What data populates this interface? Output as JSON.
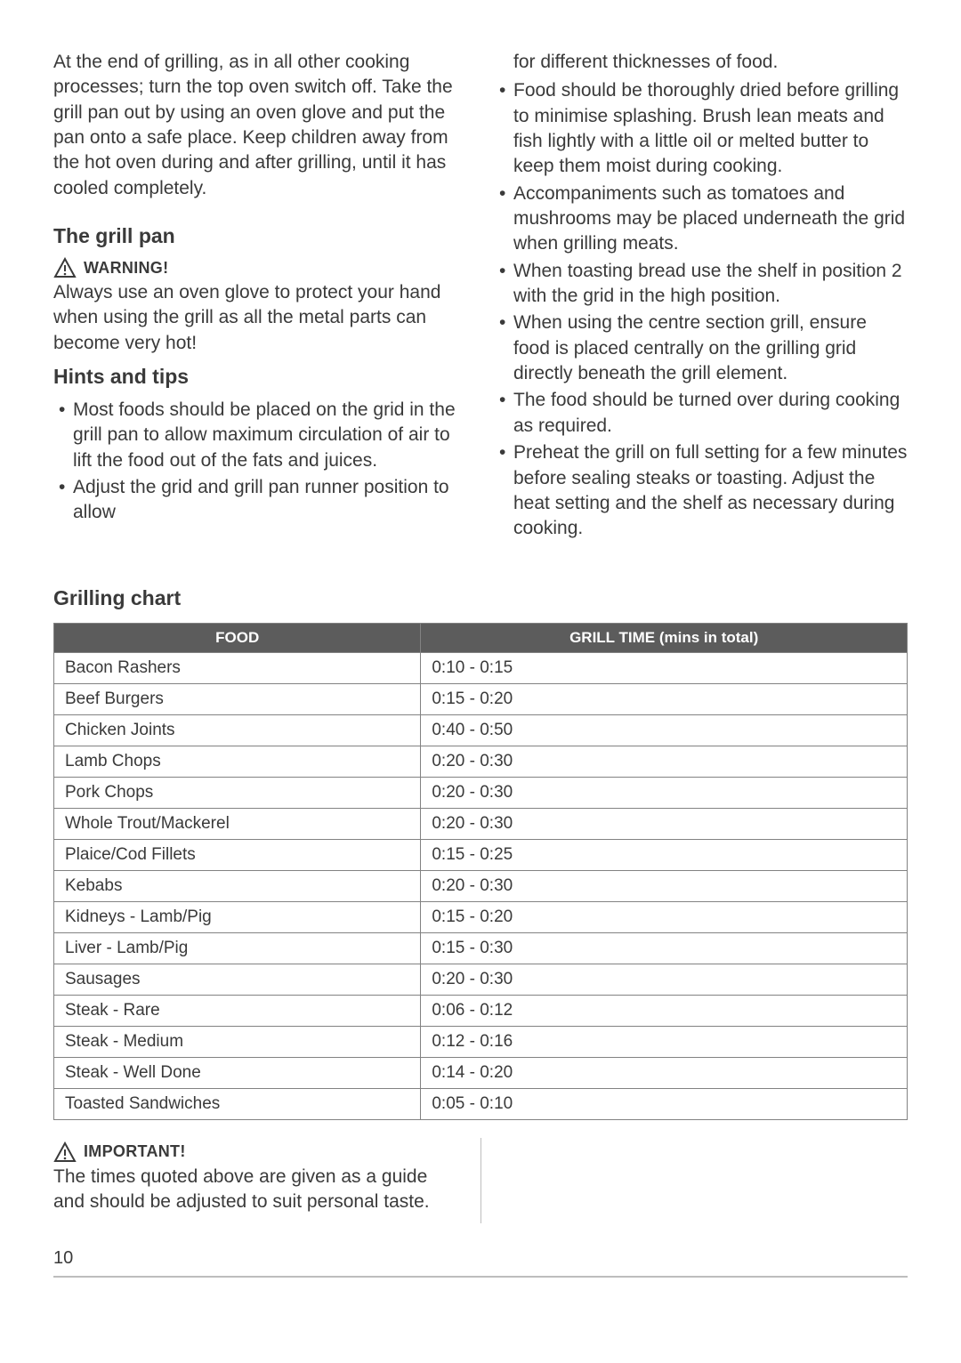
{
  "intro": "At the end of grilling, as in all other cooking processes; turn the top oven switch off. Take the grill pan out by using an oven glove and put the pan onto a safe place. Keep children away from the hot oven during and after grilling, until it has cooled completely.",
  "section_grill_pan": "The grill pan",
  "warning_label": "WARNING!",
  "warning_text": "Always use an oven glove to protect your hand when using the grill as all the metal parts can become very hot!",
  "section_hints": "Hints and tips",
  "hints_left": [
    "Most foods should be placed on the grid in the grill pan to allow maximum circulation of air to lift the food out of the fats and juices.",
    "Adjust the grid and grill pan runner position to allow"
  ],
  "right_continuation": "for different thicknesses of food.",
  "hints_right": [
    "Food should be thoroughly dried before grilling to minimise splashing. Brush lean meats and fish lightly with a little oil or melted butter to keep them moist during cooking.",
    "Accompaniments such as tomatoes and mushrooms may be placed underneath the grid when grilling meats.",
    "When toasting bread use the shelf in position 2 with the grid in the high position.",
    "When using the centre section grill, ensure food is placed centrally on the grilling grid directly beneath the grill element.",
    "The food should be turned over during cooking as required.",
    "Preheat the grill on full setting for a few minutes before sealing steaks or toasting. Adjust the heat setting and the shelf as necessary during cooking."
  ],
  "chart_title": "Grilling chart",
  "table": {
    "header_food": "FOOD",
    "header_time": "GRILL TIME (mins in total)",
    "rows": [
      {
        "food": "Bacon Rashers",
        "time": "0:10 - 0:15"
      },
      {
        "food": "Beef Burgers",
        "time": "0:15 - 0:20"
      },
      {
        "food": "Chicken Joints",
        "time": "0:40 - 0:50"
      },
      {
        "food": "Lamb Chops",
        "time": "0:20 - 0:30"
      },
      {
        "food": "Pork Chops",
        "time": "0:20 - 0:30"
      },
      {
        "food": "Whole Trout/Mackerel",
        "time": "0:20 - 0:30"
      },
      {
        "food": "Plaice/Cod Fillets",
        "time": "0:15 - 0:25"
      },
      {
        "food": "Kebabs",
        "time": "0:20 - 0:30"
      },
      {
        "food": "Kidneys - Lamb/Pig",
        "time": "0:15 - 0:20"
      },
      {
        "food": "Liver - Lamb/Pig",
        "time": "0:15 - 0:30"
      },
      {
        "food": "Sausages",
        "time": "0:20 - 0:30"
      },
      {
        "food": "Steak - Rare",
        "time": "0:06 - 0:12"
      },
      {
        "food": "Steak - Medium",
        "time": "0:12 - 0:16"
      },
      {
        "food": "Steak - Well Done",
        "time": "0:14 - 0:20"
      },
      {
        "food": "Toasted Sandwiches",
        "time": "0:05 - 0:10"
      }
    ]
  },
  "important_label": "IMPORTANT!",
  "important_text": "The times quoted above are given as a guide and should be adjusted to suit personal taste.",
  "page_number": "10",
  "colors": {
    "text": "#3a3a3a",
    "table_header_bg": "#5c5c5c",
    "table_header_fg": "#ffffff",
    "table_border": "#828282",
    "rule": "#bdbdbd"
  }
}
